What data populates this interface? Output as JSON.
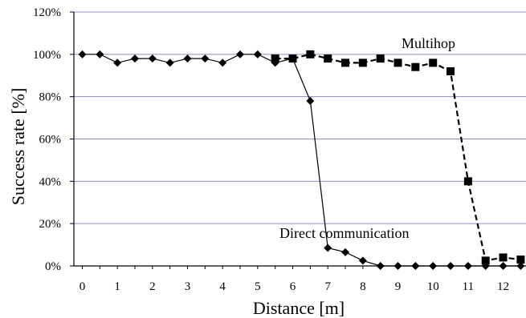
{
  "chart_data": {
    "type": "line",
    "xlabel": "Distance [m]",
    "ylabel": "Success rate [%]",
    "xlim": [
      0,
      12.5
    ],
    "ylim": [
      0,
      120
    ],
    "x_ticks": [
      0,
      1,
      2,
      3,
      4,
      5,
      6,
      7,
      8,
      9,
      10,
      11,
      12
    ],
    "y_ticks": [
      0,
      20,
      40,
      60,
      80,
      100,
      120
    ],
    "y_tick_labels": [
      "0%",
      "20%",
      "40%",
      "60%",
      "80%",
      "100%",
      "120%"
    ],
    "grid": "horizontal",
    "annotations": [
      "Multihop",
      "Direct communication"
    ],
    "series": [
      {
        "name": "Direct communication",
        "marker": "diamond",
        "line": "solid",
        "x": [
          0,
          0.5,
          1,
          1.5,
          2,
          2.5,
          3,
          3.5,
          4,
          4.5,
          5,
          5.5,
          6,
          6.5,
          7,
          7.5,
          8,
          8.5,
          9,
          9.5,
          10,
          10.5,
          11,
          11.5,
          12,
          12.5
        ],
        "values": [
          100,
          100,
          96,
          98,
          98,
          96,
          98,
          98,
          96,
          100,
          100,
          96,
          98,
          78,
          8.5,
          6.5,
          2.5,
          0,
          0,
          0,
          0,
          0,
          0,
          0,
          0,
          0
        ]
      },
      {
        "name": "Multihop",
        "marker": "square",
        "line": "dashed",
        "x": [
          5.5,
          6,
          6.5,
          7,
          7.5,
          8,
          8.5,
          9,
          9.5,
          10,
          10.5,
          11,
          11.5,
          12,
          12.5
        ],
        "values": [
          98,
          98,
          100,
          98,
          96,
          96,
          98,
          96,
          94,
          96,
          92,
          40,
          2.5,
          4,
          3
        ]
      }
    ]
  }
}
